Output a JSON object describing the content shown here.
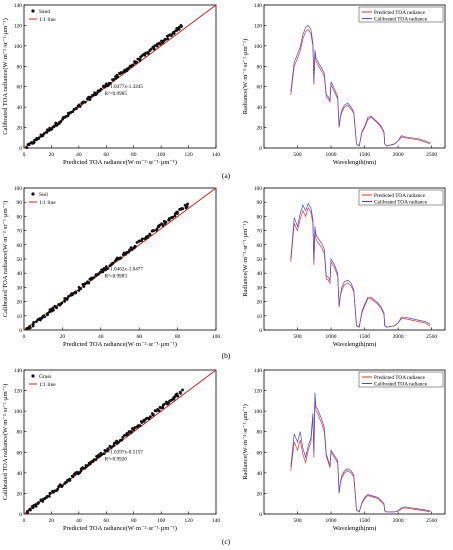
{
  "chart_data": [
    {
      "id": "a-scatter",
      "type": "scatter",
      "xlabel": "Predicted TOA radiance(W·m⁻²·sr⁻¹·μm⁻¹)",
      "ylabel": "Calibrated TOA radiance(W·m⁻²·sr⁻¹·μm⁻¹)",
      "xlim": [
        0,
        140
      ],
      "ylim": [
        0,
        140
      ],
      "xticks": [
        0,
        20,
        40,
        60,
        80,
        100,
        120,
        140
      ],
      "yticks": [
        0,
        20,
        40,
        60,
        80,
        100,
        120,
        140
      ],
      "legend": [
        "Sand",
        "1:1 line"
      ],
      "legend_position": "top-left",
      "equation": "y=1.0477x-1.3245",
      "r2": "R²=0.9985",
      "fit": {
        "slope": 1.0477,
        "intercept": -1.3245
      },
      "x_range": [
        2,
        115
      ]
    },
    {
      "id": "a-spectrum",
      "type": "line",
      "xlabel": "Wavelength(nm)",
      "ylabel": "Radiance(W·m⁻²·sr⁻¹·μm⁻¹)",
      "xlim": [
        0,
        2700
      ],
      "ylim": [
        0,
        140
      ],
      "xticks": [
        500,
        1000,
        1500,
        2000,
        2500
      ],
      "yticks": [
        0,
        20,
        40,
        60,
        80,
        100,
        120,
        140
      ],
      "legend_position": "top-right",
      "series": [
        {
          "name": "Predicted TOA radiance",
          "color": "#e8302a",
          "x": [
            400,
            450,
            500,
            540,
            580,
            620,
            660,
            700,
            730,
            745,
            760,
            775,
            800,
            860,
            900,
            930,
            960,
            985,
            1000,
            1050,
            1100,
            1120,
            1140,
            1160,
            1200,
            1250,
            1300,
            1340,
            1380,
            1420,
            1460,
            1500,
            1550,
            1600,
            1650,
            1700,
            1750,
            1790,
            1800,
            1830,
            1950,
            2000,
            2050,
            2100,
            2200,
            2300,
            2400,
            2480
          ],
          "y": [
            52,
            80,
            88,
            95,
            107,
            114,
            116,
            112,
            100,
            62,
            93,
            85,
            82,
            75,
            70,
            50,
            48,
            45,
            62,
            55,
            48,
            20,
            30,
            35,
            40,
            42,
            38,
            34,
            4,
            2,
            15,
            20,
            28,
            30,
            27,
            24,
            20,
            15,
            4,
            2,
            4,
            7,
            11,
            10,
            9,
            8,
            6,
            4
          ]
        },
        {
          "name": "Calibrated TOA radiance",
          "color": "#4a4adc",
          "x": [
            400,
            450,
            500,
            540,
            580,
            620,
            660,
            700,
            730,
            745,
            760,
            775,
            800,
            860,
            900,
            930,
            960,
            985,
            1000,
            1050,
            1100,
            1120,
            1140,
            1160,
            1200,
            1250,
            1300,
            1340,
            1380,
            1420,
            1460,
            1500,
            1550,
            1600,
            1650,
            1700,
            1750,
            1790,
            1800,
            1830,
            1950,
            2000,
            2050,
            2100,
            2200,
            2300,
            2400,
            2480
          ],
          "y": [
            55,
            84,
            92,
            99,
            111,
            118,
            120,
            116,
            103,
            64,
            96,
            88,
            85,
            78,
            73,
            52,
            50,
            47,
            65,
            58,
            50,
            21,
            31,
            37,
            42,
            44,
            40,
            35,
            4,
            2,
            16,
            21,
            30,
            31,
            28,
            25,
            21,
            16,
            4,
            2,
            4,
            7,
            12,
            11,
            10,
            9,
            7,
            5
          ]
        }
      ]
    },
    {
      "id": "b-scatter",
      "type": "scatter",
      "xlabel": "Predicted TOA radiance(W·m⁻²·sr⁻¹·μm⁻¹)",
      "ylabel": "Calibrated TOA radiance(W·m⁻²·sr⁻¹·μm⁻¹)",
      "xlim": [
        0,
        100
      ],
      "ylim": [
        0,
        100
      ],
      "xticks": [
        0,
        20,
        40,
        60,
        80,
        100
      ],
      "yticks": [
        0,
        10,
        20,
        30,
        40,
        50,
        60,
        70,
        80,
        90,
        100
      ],
      "legend": [
        "Soil",
        "1:1 line"
      ],
      "legend_position": "top-left",
      "equation": "y=1.0462x-1.0477",
      "r2": "R²=0.9983",
      "fit": {
        "slope": 1.0462,
        "intercept": -1.0477
      },
      "x_range": [
        1,
        85
      ]
    },
    {
      "id": "b-spectrum",
      "type": "line",
      "xlabel": "Wavelength(nm)",
      "ylabel": "Radiance(W·m⁻²·sr⁻¹·μm⁻¹)",
      "xlim": [
        0,
        2700
      ],
      "ylim": [
        0,
        100
      ],
      "xticks": [
        500,
        1000,
        1500,
        2000,
        2500
      ],
      "yticks": [
        0,
        10,
        20,
        30,
        40,
        50,
        60,
        70,
        80,
        90,
        100
      ],
      "legend_position": "top-right",
      "series": [
        {
          "name": "Predicted TOA radiance",
          "color": "#e8302a",
          "x": [
            400,
            450,
            500,
            540,
            580,
            620,
            660,
            700,
            730,
            745,
            760,
            775,
            800,
            860,
            900,
            930,
            960,
            985,
            1000,
            1050,
            1100,
            1120,
            1140,
            1160,
            1200,
            1250,
            1300,
            1340,
            1380,
            1420,
            1460,
            1500,
            1550,
            1600,
            1650,
            1700,
            1750,
            1790,
            1800,
            1830,
            1950,
            2000,
            2050,
            2100,
            2200,
            2300,
            2400,
            2480
          ],
          "y": [
            48,
            75,
            70,
            78,
            84,
            80,
            86,
            83,
            75,
            46,
            70,
            64,
            62,
            58,
            54,
            36,
            35,
            33,
            48,
            44,
            38,
            16,
            24,
            28,
            32,
            33,
            31,
            27,
            3,
            2,
            12,
            17,
            22,
            22,
            20,
            18,
            15,
            11,
            3,
            2,
            3,
            5,
            8,
            8,
            7,
            6,
            5,
            3
          ]
        },
        {
          "name": "Calibrated TOA radiance",
          "color": "#4a4adc",
          "x": [
            400,
            450,
            500,
            540,
            580,
            620,
            660,
            700,
            730,
            745,
            760,
            775,
            800,
            860,
            900,
            930,
            960,
            985,
            1000,
            1050,
            1100,
            1120,
            1140,
            1160,
            1200,
            1250,
            1300,
            1340,
            1380,
            1420,
            1460,
            1500,
            1550,
            1600,
            1650,
            1700,
            1750,
            1790,
            1800,
            1830,
            1950,
            2000,
            2050,
            2100,
            2200,
            2300,
            2400,
            2480
          ],
          "y": [
            50,
            79,
            73,
            82,
            88,
            84,
            89,
            86,
            78,
            48,
            73,
            67,
            65,
            61,
            57,
            38,
            37,
            35,
            50,
            46,
            40,
            17,
            25,
            30,
            34,
            35,
            33,
            28,
            3,
            2,
            13,
            18,
            23,
            23,
            21,
            19,
            16,
            12,
            3,
            2,
            3,
            5,
            9,
            9,
            8,
            7,
            6,
            4
          ]
        }
      ]
    },
    {
      "id": "c-scatter",
      "type": "scatter",
      "xlabel": "Predicted TOA radiance(W·m⁻²·sr⁻¹·μm⁻¹)",
      "ylabel": "Calibrated TOA radiance(W·m⁻²·sr⁻¹·μm⁻¹)",
      "xlim": [
        0,
        140
      ],
      "ylim": [
        0,
        140
      ],
      "xticks": [
        0,
        20,
        40,
        60,
        80,
        100,
        120,
        140
      ],
      "yticks": [
        0,
        20,
        40,
        60,
        80,
        100,
        120,
        140
      ],
      "legend": [
        "Grass",
        "1:1 line"
      ],
      "legend_position": "top-left",
      "equation": "y=1.0397x-0.5157",
      "r2": "R²=0.9920",
      "fit": {
        "slope": 1.0397,
        "intercept": -0.5157
      },
      "x_range": [
        2,
        115
      ]
    },
    {
      "id": "c-spectrum",
      "type": "line",
      "xlabel": "Wavelength(nm)",
      "ylabel": "Radiance(W·m⁻²·sr⁻¹·μm⁻¹)",
      "xlim": [
        0,
        2700
      ],
      "ylim": [
        0,
        140
      ],
      "xticks": [
        500,
        1000,
        1500,
        2000,
        2500
      ],
      "yticks": [
        0,
        20,
        40,
        60,
        80,
        100,
        120,
        140
      ],
      "legend_position": "top-right",
      "series": [
        {
          "name": "Predicted TOA radiance",
          "color": "#e8302a",
          "x": [
            400,
            450,
            500,
            540,
            580,
            620,
            660,
            700,
            730,
            745,
            760,
            775,
            800,
            860,
            900,
            930,
            960,
            985,
            1000,
            1050,
            1100,
            1120,
            1140,
            1160,
            1200,
            1250,
            1300,
            1340,
            1380,
            1420,
            1460,
            1500,
            1550,
            1600,
            1650,
            1700,
            1750,
            1790,
            1800,
            1830,
            1950,
            2000,
            2050,
            2100,
            2200,
            2300,
            2400,
            2480
          ],
          "y": [
            42,
            70,
            62,
            72,
            58,
            50,
            62,
            70,
            95,
            55,
            112,
            100,
            98,
            88,
            80,
            56,
            50,
            45,
            60,
            55,
            50,
            20,
            30,
            35,
            40,
            42,
            40,
            36,
            4,
            2,
            10,
            15,
            18,
            17,
            16,
            15,
            12,
            9,
            3,
            2,
            2,
            3,
            5,
            6,
            5,
            4,
            3,
            2
          ]
        },
        {
          "name": "Calibrated TOA radiance",
          "color": "#4a4adc",
          "x": [
            400,
            450,
            500,
            540,
            580,
            620,
            660,
            700,
            730,
            745,
            760,
            775,
            800,
            860,
            900,
            930,
            960,
            985,
            1000,
            1050,
            1100,
            1120,
            1140,
            1160,
            1200,
            1250,
            1300,
            1340,
            1380,
            1420,
            1460,
            1500,
            1550,
            1600,
            1650,
            1700,
            1750,
            1790,
            1800,
            1830,
            1950,
            2000,
            2050,
            2100,
            2200,
            2300,
            2400,
            2480
          ],
          "y": [
            46,
            78,
            70,
            80,
            64,
            55,
            66,
            74,
            98,
            58,
            118,
            104,
            102,
            92,
            84,
            58,
            52,
            47,
            62,
            57,
            52,
            21,
            31,
            37,
            42,
            44,
            42,
            38,
            4,
            2,
            11,
            16,
            19,
            18,
            17,
            16,
            13,
            10,
            3,
            2,
            2,
            3,
            6,
            7,
            6,
            5,
            4,
            3
          ]
        }
      ]
    }
  ],
  "panel_labels": [
    "(a)",
    "(b)",
    "(c)"
  ]
}
